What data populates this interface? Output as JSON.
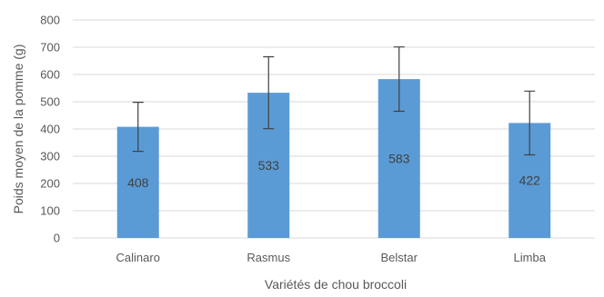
{
  "chart_data": {
    "type": "bar",
    "title": "",
    "xlabel": "Variétés de chou broccoli",
    "ylabel": "Poids moyen de la pomme (g)",
    "categories": [
      "Calinaro",
      "Rasmus",
      "Belstar",
      "Limba"
    ],
    "series": [
      {
        "values": [
          408,
          533,
          583,
          422
        ],
        "error": [
          90,
          132,
          118,
          117
        ],
        "data_labels": [
          "408",
          "533",
          "583",
          "422"
        ],
        "color": "#5b9bd5"
      }
    ],
    "ylim": [
      0,
      800
    ],
    "yticks": [
      0,
      100,
      200,
      300,
      400,
      500,
      600,
      700,
      800
    ],
    "grid": true,
    "legend": "none"
  }
}
